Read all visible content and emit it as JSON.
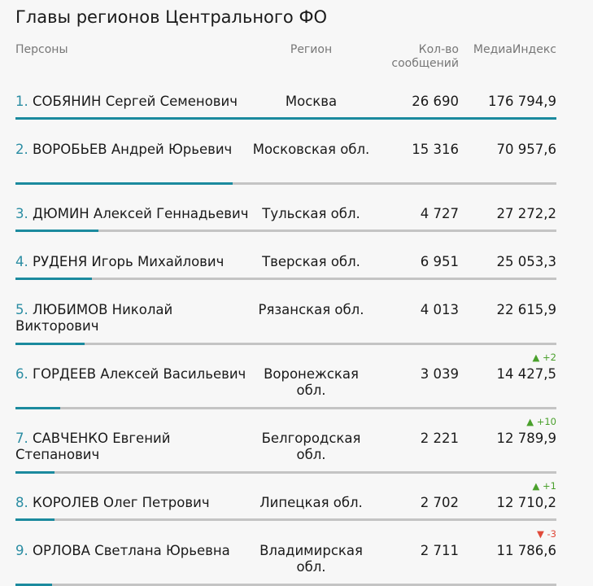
{
  "title": "Главы регионов Центрального ФО",
  "columns": {
    "persons": "Персоны",
    "region": "Регион",
    "count": "Кол-во\nсообщений",
    "media": "МедиаИндекс"
  },
  "rows": [
    {
      "num": "1.",
      "name": "СОБЯНИН Сергей Семенович",
      "region": "Москва",
      "count": "26 690",
      "media": "176 794,9",
      "change": "",
      "trend": "",
      "share": 1.0
    },
    {
      "num": "2.",
      "name": "ВОРОБЬЕВ Андрей Юрьевич",
      "region": "Московская обл.",
      "count": "15 316",
      "media": "70 957,6",
      "change": "",
      "trend": "",
      "share": 0.401
    },
    {
      "num": "3.",
      "name": "ДЮМИН Алексей Геннадьевич",
      "region": "Тульская обл.",
      "count": "4 727",
      "media": "27 272,2",
      "change": "",
      "trend": "",
      "share": 0.154
    },
    {
      "num": "4.",
      "name": "РУДЕНЯ Игорь Михайлович",
      "region": "Тверская обл.",
      "count": "6 951",
      "media": "25 053,3",
      "change": "",
      "trend": "",
      "share": 0.142
    },
    {
      "num": "5.",
      "name": "ЛЮБИМОВ Николай Викторович",
      "region": "Рязанская обл.",
      "count": "4 013",
      "media": "22 615,9",
      "change": "",
      "trend": "",
      "share": 0.128
    },
    {
      "num": "6.",
      "name": "ГОРДЕЕВ Алексей Васильевич",
      "region": "Воронежская обл.",
      "count": "3 039",
      "media": "14 427,5",
      "change": "▲ +2",
      "trend": "up",
      "share": 0.082
    },
    {
      "num": "7.",
      "name": "САВЧЕНКО Евгений Степанович",
      "region": "Белгородская обл.",
      "count": "2 221",
      "media": "12 789,9",
      "change": "▲ +10",
      "trend": "up",
      "share": 0.072
    },
    {
      "num": "8.",
      "name": "КОРОЛЕВ Олег Петрович",
      "region": "Липецкая обл.",
      "count": "2 702",
      "media": "12 710,2",
      "change": "▲ +1",
      "trend": "up",
      "share": 0.072
    },
    {
      "num": "9.",
      "name": "ОРЛОВА Светлана Юрьевна",
      "region": "Владимирская обл.",
      "count": "2 711",
      "media": "11 786,6",
      "change": "▼ -3",
      "trend": "down",
      "share": 0.067
    }
  ]
}
